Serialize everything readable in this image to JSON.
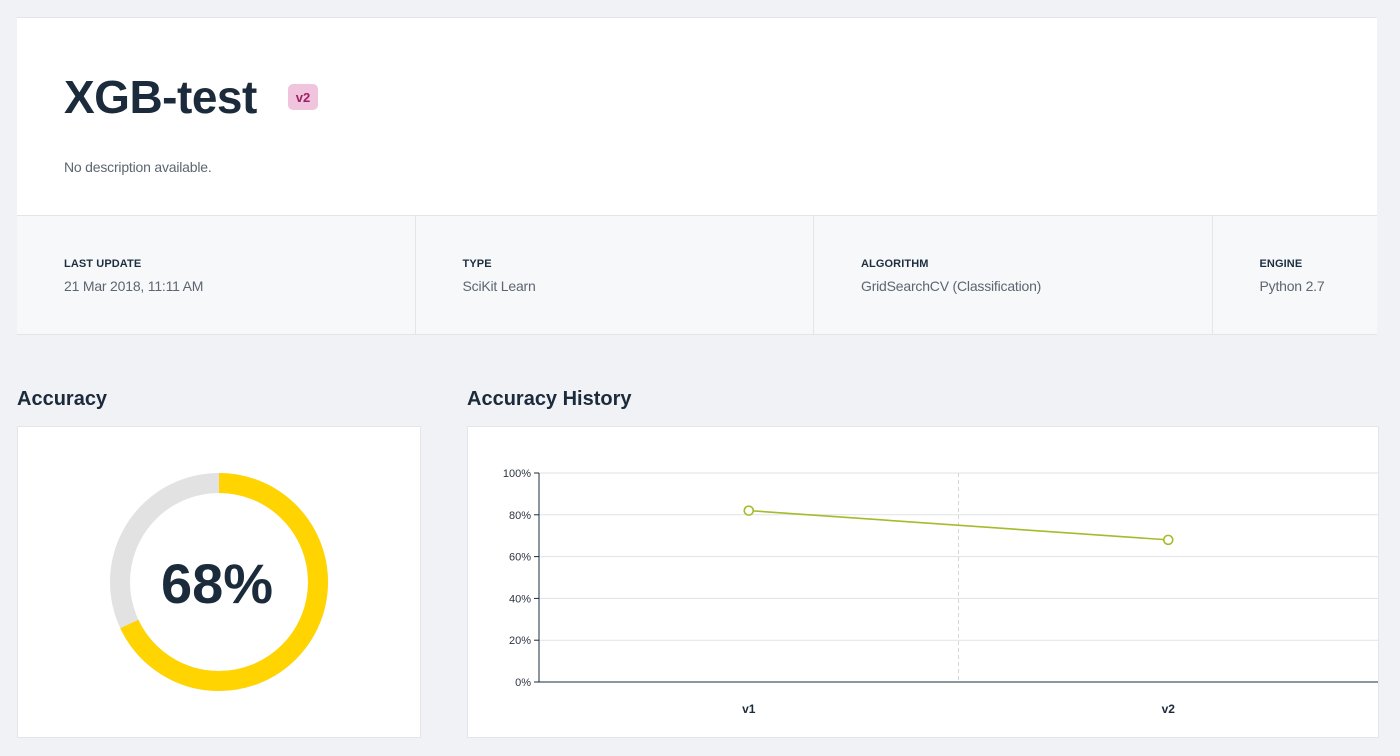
{
  "header": {
    "title": "XGB-test",
    "version_badge": "v2",
    "description": "No description available."
  },
  "meta": [
    {
      "label": "LAST UPDATE",
      "value": "21 Mar 2018, 11:11 AM"
    },
    {
      "label": "TYPE",
      "value": "SciKit Learn"
    },
    {
      "label": "ALGORITHM",
      "value": "GridSearchCV (Classification)"
    },
    {
      "label": "ENGINE",
      "value": "Python 2.7"
    }
  ],
  "accuracy": {
    "section_title": "Accuracy",
    "value_label": "68%",
    "fraction": 0.68,
    "colors": {
      "filled": "#ffd400",
      "remaining": "#e2e2e2"
    }
  },
  "history": {
    "section_title": "Accuracy History"
  },
  "chart_data": {
    "type": "line",
    "categories": [
      "v1",
      "v2"
    ],
    "series": [
      {
        "values": [
          82,
          68
        ],
        "color": "#a7ba2a"
      }
    ],
    "ylim": [
      0,
      100
    ],
    "yticks": [
      "0%",
      "20%",
      "40%",
      "60%",
      "80%",
      "100%"
    ],
    "grid": true
  }
}
